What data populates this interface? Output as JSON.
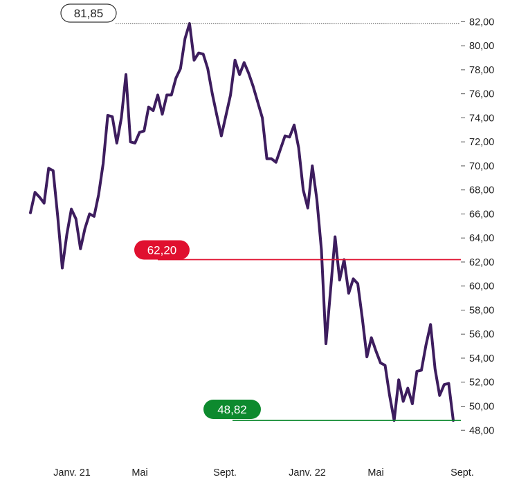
{
  "chart_data": {
    "type": "line",
    "ylim": [
      47.3,
      82.3
    ],
    "y_ticks": [
      "82,00",
      "80,00",
      "78,00",
      "76,00",
      "74,00",
      "72,00",
      "70,00",
      "68,00",
      "66,00",
      "64,00",
      "62,00",
      "60,00",
      "58,00",
      "56,00",
      "54,00",
      "52,00",
      "50,00",
      "48,00"
    ],
    "x_labels": [
      "Janv. 21",
      "Mai",
      "Sept.",
      "Janv. 22",
      "Mai",
      "Sept."
    ],
    "series": [
      {
        "color": "#3d1d5e",
        "values": [
          66.1,
          67.8,
          67.4,
          66.9,
          69.8,
          69.6,
          65.8,
          61.5,
          64.3,
          66.4,
          65.6,
          63.1,
          64.8,
          66.0,
          65.8,
          67.6,
          70.2,
          74.2,
          74.1,
          71.9,
          74.0,
          77.6,
          72.0,
          71.9,
          72.8,
          72.9,
          74.9,
          74.6,
          75.9,
          74.3,
          75.9,
          75.9,
          77.3,
          78.1,
          80.6,
          81.85,
          78.8,
          79.4,
          79.3,
          78.1,
          76.0,
          74.2,
          72.5,
          74.2,
          75.9,
          78.8,
          77.6,
          78.6,
          77.7,
          76.6,
          75.3,
          74.0,
          70.6,
          70.6,
          70.3,
          71.4,
          72.5,
          72.4,
          73.4,
          71.5,
          68.0,
          66.5,
          70.0,
          67.2,
          63.0,
          55.2,
          59.6,
          64.1,
          60.5,
          62.2,
          59.4,
          60.6,
          60.2,
          57.3,
          54.1,
          55.7,
          54.6,
          53.6,
          53.4,
          50.9,
          48.82,
          52.2,
          50.4,
          51.5,
          50.2,
          52.9,
          53.0,
          55.1,
          56.8,
          53.1,
          50.9,
          51.8,
          51.9,
          48.82
        ]
      }
    ],
    "annotations": [
      {
        "label": "81,85",
        "value": 81.85,
        "style": "max"
      },
      {
        "label": "62,20",
        "value": 62.2,
        "style": "red",
        "color": "#e0102f"
      },
      {
        "label": "48,82",
        "value": 48.82,
        "style": "green",
        "color": "#0d8a2e"
      }
    ]
  }
}
